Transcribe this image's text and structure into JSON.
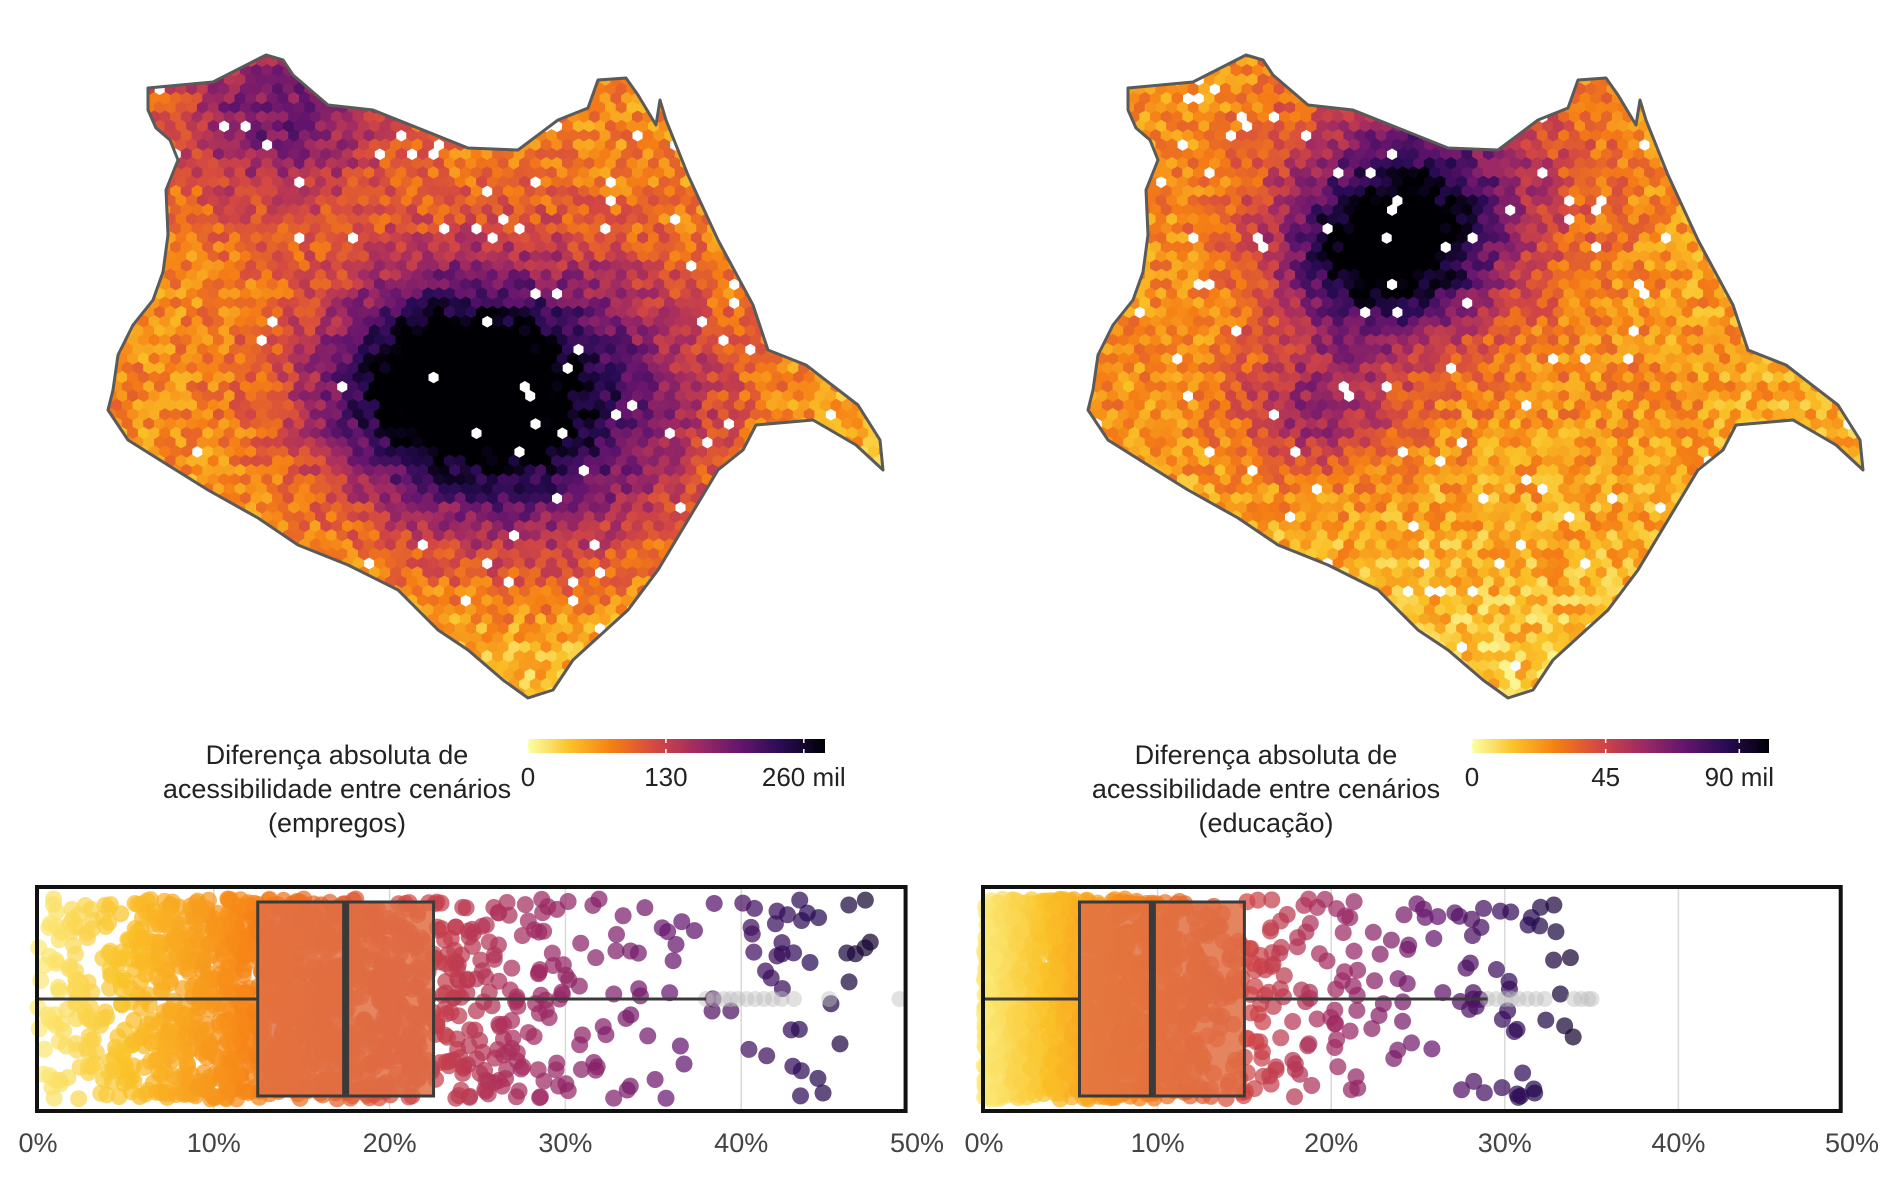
{
  "colors": {
    "inferno_stops": [
      "#fcffa4",
      "#fac127",
      "#f57d15",
      "#d44842",
      "#9f2a63",
      "#65156e",
      "#280b54",
      "#000004"
    ],
    "outline": "#5a5a5a",
    "box_fill": "#e07044",
    "box_stroke": "#3a3a3a",
    "frame": "#111111",
    "grid": "#d9d9d9",
    "outlier": "#bdbdbd"
  },
  "chart_data": [
    {
      "type": "heatmap",
      "subtype": "hexbin-map",
      "title": "",
      "legend": {
        "title_lines": [
          "Diferença absoluta de",
          "acessibilidade entre cenários",
          "(empregos)"
        ],
        "ticks": [
          0,
          130,
          260
        ],
        "tick_labels": [
          "0",
          "130",
          "260 mil"
        ],
        "range": [
          0,
          280
        ],
        "unit": "mil"
      },
      "hotspots": [
        {
          "x": 0.53,
          "y": 0.55,
          "value": 270,
          "spread": 0.16
        },
        {
          "x": 0.42,
          "y": 0.5,
          "value": 200,
          "spread": 0.1
        },
        {
          "x": 0.22,
          "y": 0.1,
          "value": 190,
          "spread": 0.1
        }
      ],
      "base_value": 70,
      "value_range": [
        0,
        275
      ]
    },
    {
      "type": "heatmap",
      "subtype": "hexbin-map",
      "title": "",
      "legend": {
        "title_lines": [
          "Diferença absoluta de",
          "acessibilidade entre cenários",
          "(educação)"
        ],
        "ticks": [
          0,
          45,
          90
        ],
        "tick_labels": [
          "0",
          "45",
          "90 mil"
        ],
        "range": [
          0,
          100
        ],
        "unit": "mil"
      },
      "hotspots": [
        {
          "x": 0.38,
          "y": 0.32,
          "value": 95,
          "spread": 0.09
        },
        {
          "x": 0.44,
          "y": 0.2,
          "value": 70,
          "spread": 0.12
        },
        {
          "x": 0.3,
          "y": 0.55,
          "value": 60,
          "spread": 0.07
        }
      ],
      "base_value": 25,
      "value_range": [
        0,
        100
      ]
    },
    {
      "type": "box",
      "subtype": "boxplot-with-jitter",
      "orientation": "horizontal",
      "xlim": [
        0,
        50
      ],
      "xticks": [
        0,
        10,
        20,
        30,
        40,
        50
      ],
      "xtick_labels": [
        "0%",
        "10%",
        "20%",
        "30%",
        "40%",
        "50%"
      ],
      "grid": true,
      "stats": {
        "min": 0,
        "q1": 12.5,
        "median": 17.5,
        "q3": 22.5,
        "whisker_high": 38
      },
      "outliers": [
        38,
        38.5,
        39,
        39.4,
        39.8,
        40.3,
        40.8,
        41.3,
        41.8,
        42.3,
        43,
        45,
        49
      ],
      "points": {
        "count": 1500,
        "mode": 14,
        "max": 49,
        "spread": 8.5
      }
    },
    {
      "type": "box",
      "subtype": "boxplot-with-jitter",
      "orientation": "horizontal",
      "xlim": [
        0,
        50
      ],
      "xticks": [
        0,
        10,
        20,
        30,
        40,
        50
      ],
      "xtick_labels": [
        "0%",
        "10%",
        "20%",
        "30%",
        "40%",
        "50%"
      ],
      "grid": true,
      "stats": {
        "min": 0,
        "q1": 5.5,
        "median": 9.7,
        "q3": 15,
        "whisker_high": 29
      },
      "outliers": [
        29,
        29.5,
        30,
        30.4,
        30.8,
        31.3,
        31.8,
        32.3,
        34,
        34.4,
        34.8,
        35
      ],
      "points": {
        "count": 1500,
        "mode": 5,
        "max": 35,
        "spread": 6.5
      }
    }
  ]
}
